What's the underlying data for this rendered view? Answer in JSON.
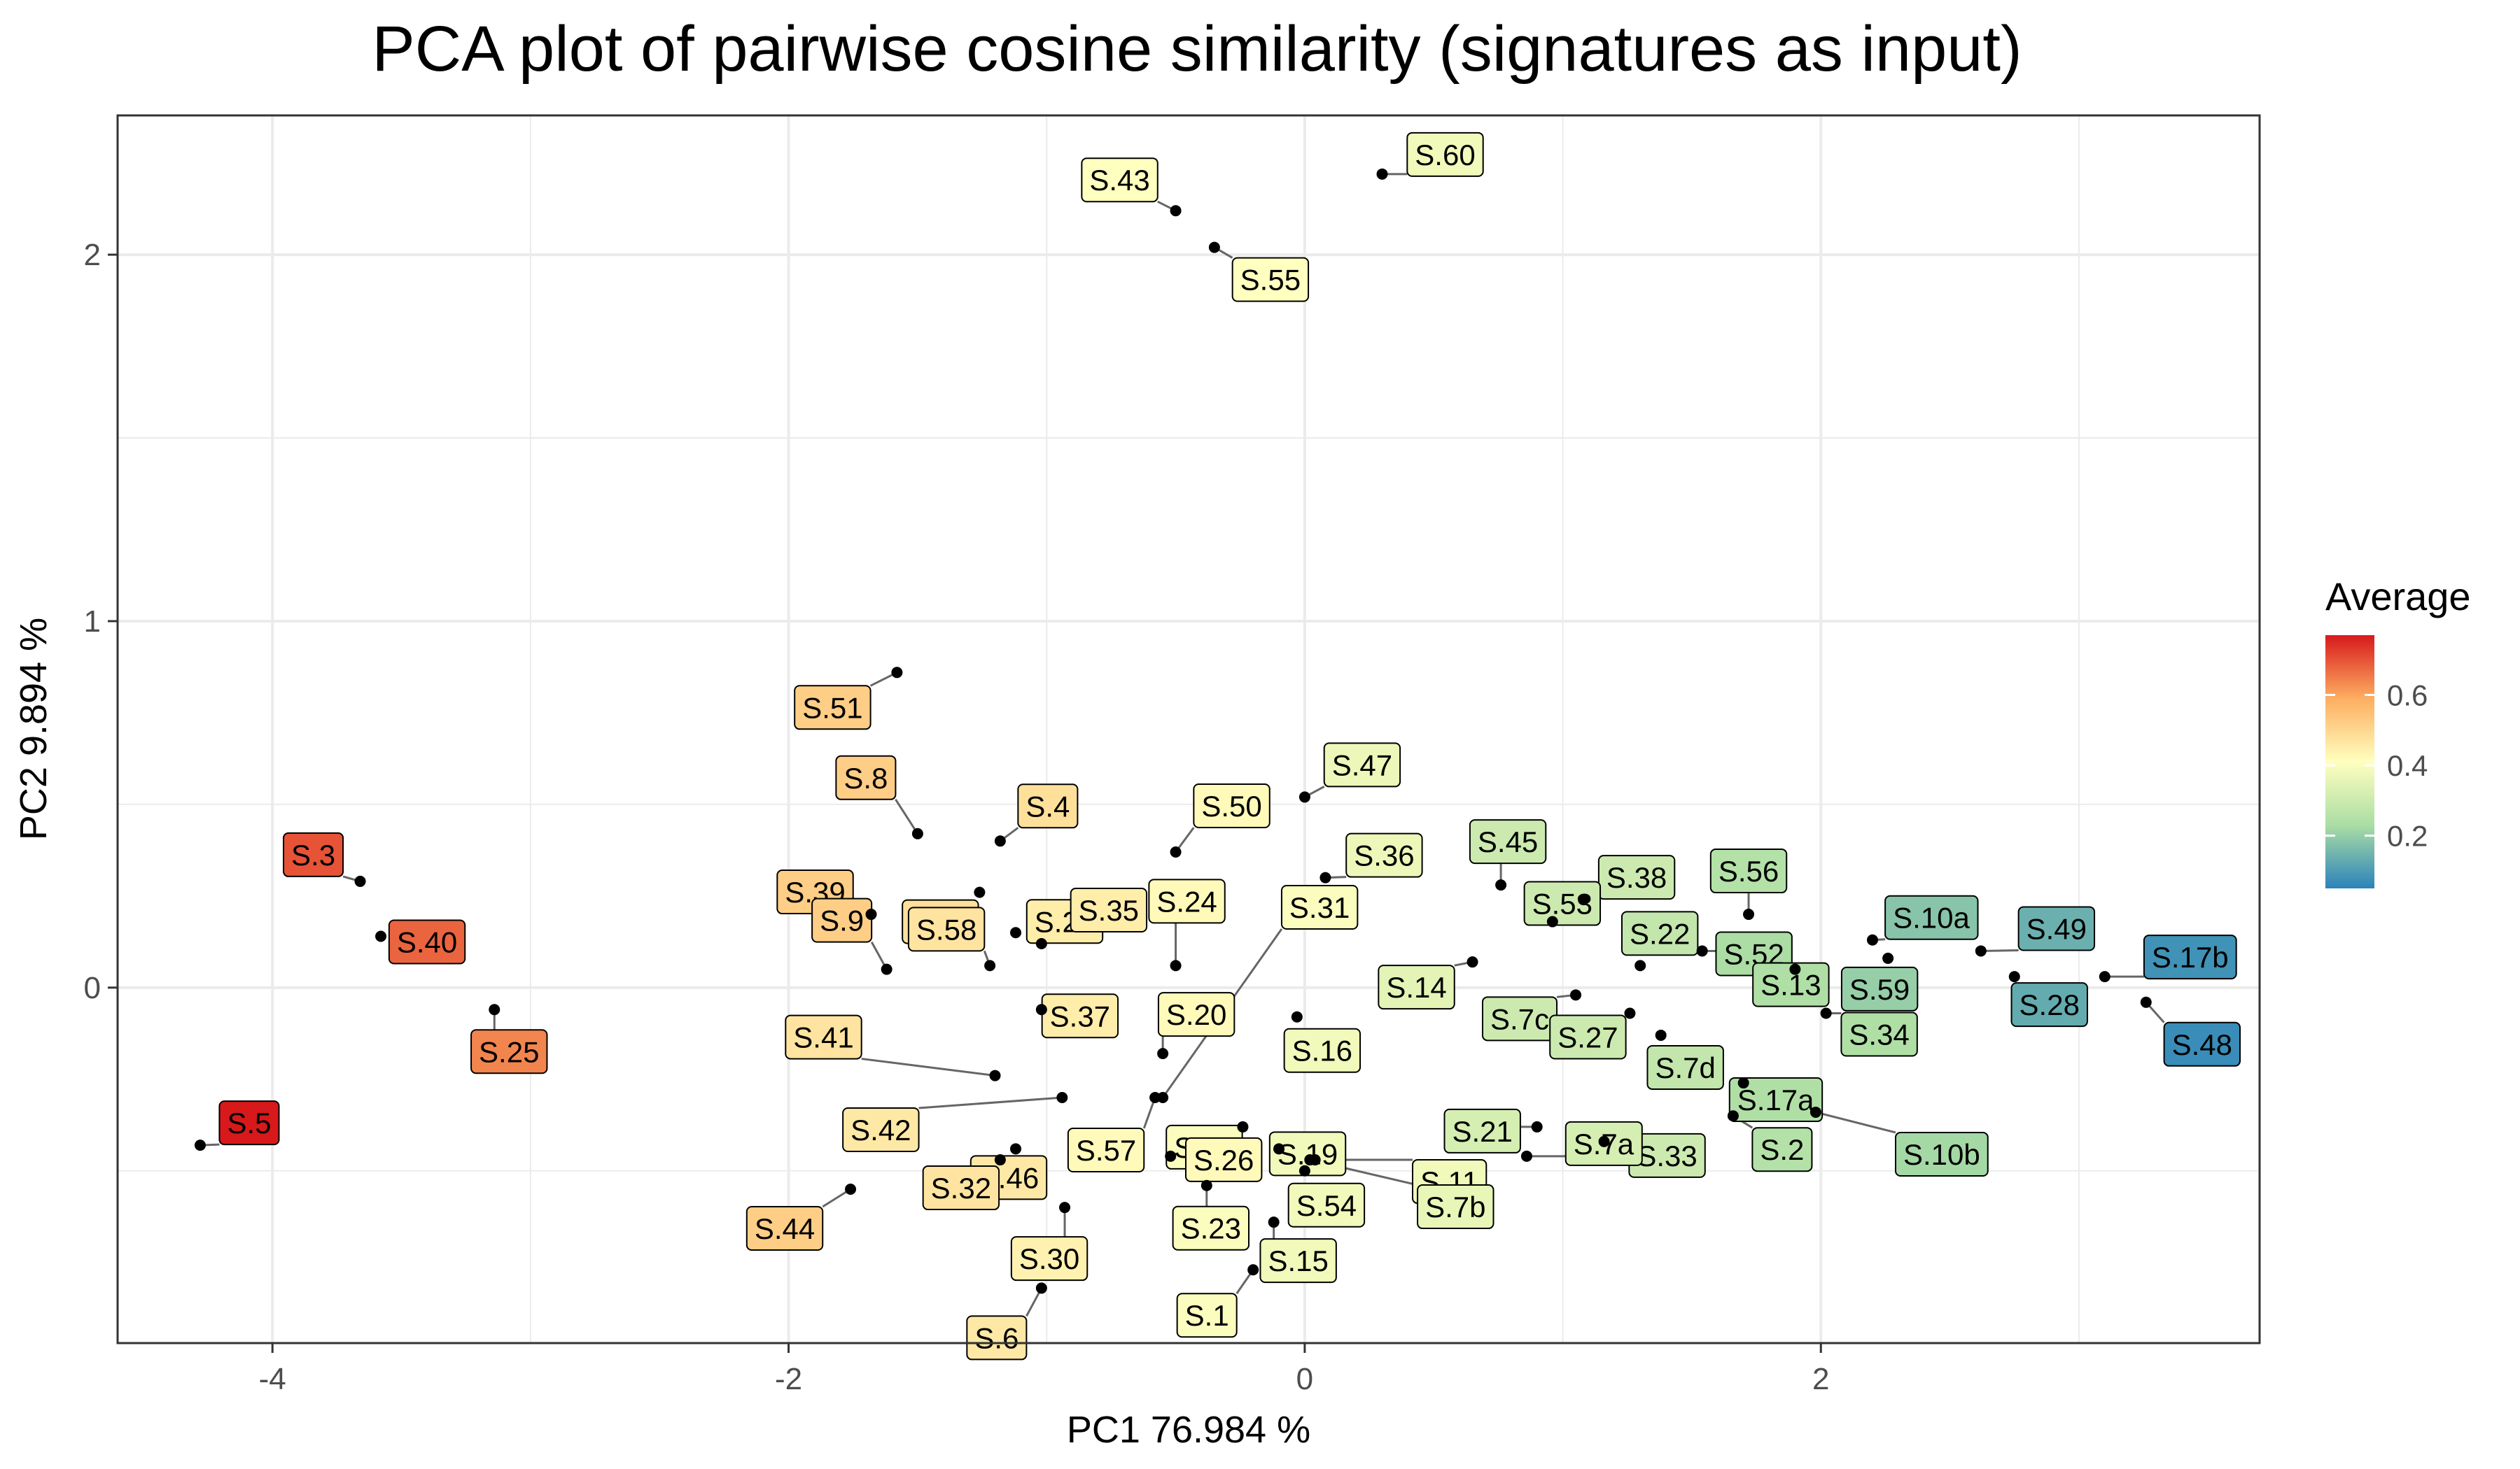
{
  "chart_data": {
    "type": "scatter",
    "title": "PCA plot of pairwise cosine similarity (signatures as input)",
    "xlabel": "PC1 76.984 %",
    "ylabel": "PC2 9.894 %",
    "xlim": [
      -4.6,
      3.7
    ],
    "ylim": [
      -0.97,
      2.38
    ],
    "x_ticks": [
      -4,
      -2,
      0,
      2
    ],
    "y_ticks": [
      0,
      1,
      2
    ],
    "x_tick_labels": [
      "-4",
      "-2",
      "0",
      "2"
    ],
    "y_tick_labels": [
      "0",
      "1",
      "2"
    ],
    "grid": true,
    "color_scale": {
      "title": "Average",
      "min": 0.05,
      "max": 0.77,
      "ticks": [
        0.2,
        0.4,
        0.6
      ],
      "tick_labels": [
        "0.2",
        "0.4",
        "0.6"
      ],
      "colors": [
        "#2b83ba",
        "#abdda4",
        "#ffffbf",
        "#fdae61",
        "#d7191c"
      ]
    },
    "legend_position": "right",
    "points": [
      {
        "label": "S.60",
        "x": 0.3,
        "y": 2.22,
        "avg": 0.38
      },
      {
        "label": "S.43",
        "x": -0.5,
        "y": 2.12,
        "avg": 0.41
      },
      {
        "label": "S.55",
        "x": -0.35,
        "y": 2.02,
        "avg": 0.41
      },
      {
        "label": "S.51",
        "x": -1.58,
        "y": 0.86,
        "avg": 0.52
      },
      {
        "label": "S.47",
        "x": 0.0,
        "y": 0.52,
        "avg": 0.37
      },
      {
        "label": "S.8",
        "x": -1.5,
        "y": 0.42,
        "avg": 0.52
      },
      {
        "label": "S.4",
        "x": -1.18,
        "y": 0.4,
        "avg": 0.48
      },
      {
        "label": "S.50",
        "x": -0.5,
        "y": 0.37,
        "avg": 0.42
      },
      {
        "label": "S.36",
        "x": 0.08,
        "y": 0.3,
        "avg": 0.37
      },
      {
        "label": "S.45",
        "x": 0.76,
        "y": 0.28,
        "avg": 0.3
      },
      {
        "label": "S.38",
        "x": 1.08,
        "y": 0.24,
        "avg": 0.3
      },
      {
        "label": "S.56",
        "x": 1.72,
        "y": 0.2,
        "avg": 0.25
      },
      {
        "label": "S.18",
        "x": -1.26,
        "y": 0.26,
        "avg": 0.48
      },
      {
        "label": "S.29",
        "x": -1.12,
        "y": 0.15,
        "avg": 0.45
      },
      {
        "label": "S.39",
        "x": -1.68,
        "y": 0.2,
        "avg": 0.52
      },
      {
        "label": "S.24",
        "x": -0.5,
        "y": 0.06,
        "avg": 0.42
      },
      {
        "label": "S.53",
        "x": 0.96,
        "y": 0.18,
        "avg": 0.3
      },
      {
        "label": "S.10a",
        "x": 2.2,
        "y": 0.13,
        "avg": 0.18
      },
      {
        "label": "S.52",
        "x": 1.54,
        "y": 0.1,
        "avg": 0.23
      },
      {
        "label": "S.49",
        "x": 2.62,
        "y": 0.1,
        "avg": 0.14
      },
      {
        "label": "S.31",
        "x": -0.55,
        "y": -0.3,
        "avg": 0.4
      },
      {
        "label": "S.9",
        "x": -1.62,
        "y": 0.05,
        "avg": 0.52
      },
      {
        "label": "S.35",
        "x": -1.02,
        "y": 0.12,
        "avg": 0.45
      },
      {
        "label": "S.58",
        "x": -1.22,
        "y": 0.06,
        "avg": 0.47
      },
      {
        "label": "S.22",
        "x": 1.3,
        "y": 0.06,
        "avg": 0.28
      },
      {
        "label": "S.59",
        "x": 2.26,
        "y": 0.08,
        "avg": 0.2
      },
      {
        "label": "S.17b",
        "x": 3.1,
        "y": 0.03,
        "avg": 0.08
      },
      {
        "label": "S.14",
        "x": 0.65,
        "y": 0.07,
        "avg": 0.35
      },
      {
        "label": "S.7c",
        "x": 1.05,
        "y": -0.02,
        "avg": 0.3
      },
      {
        "label": "S.20",
        "x": -0.55,
        "y": -0.18,
        "avg": 0.42
      },
      {
        "label": "S.37",
        "x": -1.02,
        "y": -0.06,
        "avg": 0.45
      },
      {
        "label": "S.13",
        "x": 1.9,
        "y": 0.05,
        "avg": 0.24
      },
      {
        "label": "S.28",
        "x": 2.75,
        "y": 0.03,
        "avg": 0.13
      },
      {
        "label": "S.48",
        "x": 3.26,
        "y": -0.04,
        "avg": 0.07
      },
      {
        "label": "S.41",
        "x": -1.2,
        "y": -0.24,
        "avg": 0.47
      },
      {
        "label": "S.34",
        "x": 2.02,
        "y": -0.07,
        "avg": 0.24
      },
      {
        "label": "S.27",
        "x": 1.26,
        "y": -0.07,
        "avg": 0.3
      },
      {
        "label": "S.16",
        "x": -0.03,
        "y": -0.08,
        "avg": 0.38
      },
      {
        "label": "S.57",
        "x": -0.58,
        "y": -0.3,
        "avg": 0.42
      },
      {
        "label": "S.42",
        "x": -0.94,
        "y": -0.3,
        "avg": 0.46
      },
      {
        "label": "S.7d",
        "x": 1.38,
        "y": -0.13,
        "avg": 0.28
      },
      {
        "label": "S.17a",
        "x": 1.7,
        "y": -0.26,
        "avg": 0.24
      },
      {
        "label": "S.12",
        "x": -0.24,
        "y": -0.38,
        "avg": 0.4
      },
      {
        "label": "S.46",
        "x": -1.12,
        "y": -0.44,
        "avg": 0.46
      },
      {
        "label": "S.19",
        "x": -0.1,
        "y": -0.44,
        "avg": 0.38
      },
      {
        "label": "S.21",
        "x": 0.9,
        "y": -0.38,
        "avg": 0.32
      },
      {
        "label": "S.2",
        "x": 1.66,
        "y": -0.35,
        "avg": 0.25
      },
      {
        "label": "S.10b",
        "x": 1.98,
        "y": -0.34,
        "avg": 0.22
      },
      {
        "label": "S.33",
        "x": 1.16,
        "y": -0.42,
        "avg": 0.3
      },
      {
        "label": "S.5",
        "x": -4.28,
        "y": -0.43,
        "avg": 0.77
      },
      {
        "label": "S.32",
        "x": -1.18,
        "y": -0.47,
        "avg": 0.47
      },
      {
        "label": "S.26",
        "x": -0.52,
        "y": -0.46,
        "avg": 0.42
      },
      {
        "label": "S.11",
        "x": 0.04,
        "y": -0.47,
        "avg": 0.38
      },
      {
        "label": "S.7a",
        "x": 0.86,
        "y": -0.46,
        "avg": 0.32
      },
      {
        "label": "S.54",
        "x": 0.0,
        "y": -0.5,
        "avg": 0.38
      },
      {
        "label": "S.7b",
        "x": 0.02,
        "y": -0.47,
        "avg": 0.36
      },
      {
        "label": "S.44",
        "x": -1.76,
        "y": -0.55,
        "avg": 0.52
      },
      {
        "label": "S.23",
        "x": -0.38,
        "y": -0.54,
        "avg": 0.4
      },
      {
        "label": "S.30",
        "x": -0.93,
        "y": -0.6,
        "avg": 0.44
      },
      {
        "label": "S.15",
        "x": -0.12,
        "y": -0.64,
        "avg": 0.38
      },
      {
        "label": "S.1",
        "x": -0.2,
        "y": -0.77,
        "avg": 0.4
      },
      {
        "label": "S.6",
        "x": -1.02,
        "y": -0.82,
        "avg": 0.46
      },
      {
        "label": "S.3",
        "x": -3.66,
        "y": 0.29,
        "avg": 0.7
      },
      {
        "label": "S.40",
        "x": -3.58,
        "y": 0.14,
        "avg": 0.68
      },
      {
        "label": "S.25",
        "x": -3.14,
        "y": -0.06,
        "avg": 0.64
      }
    ]
  }
}
